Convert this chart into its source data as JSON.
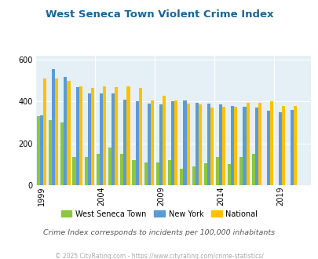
{
  "title": "West Seneca Town Violent Crime Index",
  "subtitle": "Crime Index corresponds to incidents per 100,000 inhabitants",
  "footer": "© 2025 CityRating.com - https://www.cityrating.com/crime-statistics/",
  "years": [
    1999,
    2000,
    2001,
    2002,
    2003,
    2004,
    2005,
    2006,
    2007,
    2008,
    2009,
    2010,
    2011,
    2012,
    2013,
    2014,
    2015,
    2016,
    2017,
    2018,
    2019,
    2020,
    2021
  ],
  "west_seneca": [
    330,
    310,
    300,
    135,
    135,
    150,
    180,
    150,
    120,
    110,
    110,
    120,
    80,
    90,
    105,
    135,
    100,
    135,
    150,
    null,
    null,
    null,
    null
  ],
  "new_york": [
    335,
    555,
    520,
    470,
    440,
    440,
    440,
    410,
    400,
    390,
    385,
    400,
    405,
    395,
    390,
    385,
    380,
    375,
    370,
    355,
    350,
    360,
    null
  ],
  "national": [
    510,
    510,
    500,
    475,
    465,
    475,
    470,
    475,
    465,
    405,
    430,
    405,
    390,
    385,
    370,
    375,
    375,
    395,
    395,
    400,
    380,
    380,
    null
  ],
  "ylim": [
    0,
    620
  ],
  "yticks": [
    0,
    200,
    400,
    600
  ],
  "xtick_years": [
    1999,
    2004,
    2009,
    2014,
    2019
  ],
  "color_ws": "#8dc63f",
  "color_ny": "#5b9bd5",
  "color_nat": "#ffc000",
  "bg_color": "#e4f0f5",
  "title_color": "#1a6496",
  "subtitle_color": "#555555",
  "footer_color": "#aaaaaa",
  "bar_width": 0.27,
  "legend_labels": [
    "West Seneca Town",
    "New York",
    "National"
  ]
}
